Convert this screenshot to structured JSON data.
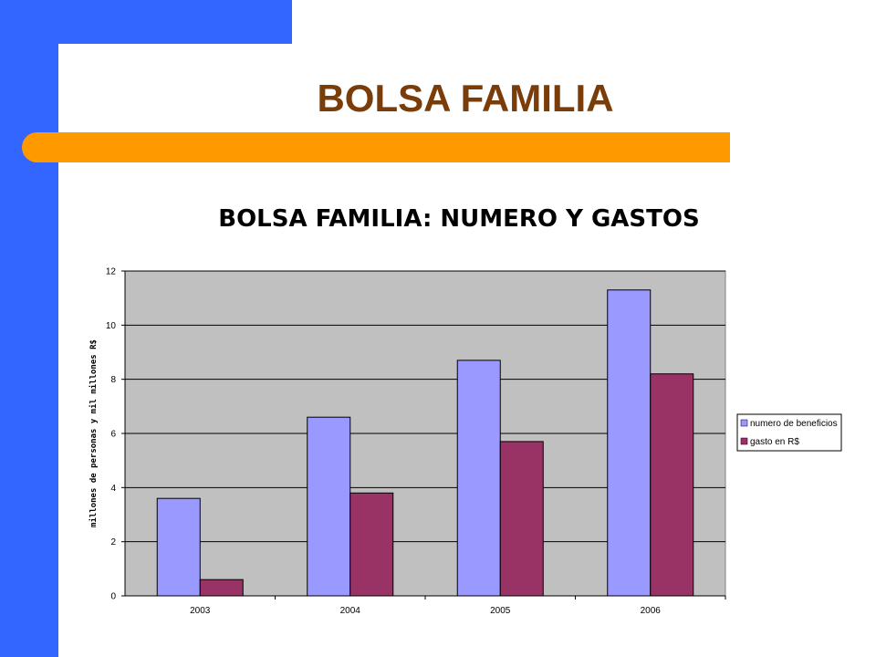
{
  "slide": {
    "title": "BOLSA FAMILIA"
  },
  "colors": {
    "accent_blue": "#3366ff",
    "accent_orange": "#ff9900",
    "title_brown": "#7a3d0a",
    "plot_bg": "#c0c0c0"
  },
  "chart_data": {
    "type": "bar",
    "title": "BOLSA FAMILIA: NUMERO Y GASTOS",
    "xlabel": "",
    "ylabel": "millones de personas y mil millones R$",
    "ylim": [
      0,
      12
    ],
    "yticks": [
      0,
      2,
      4,
      6,
      8,
      10,
      12
    ],
    "categories": [
      "2003",
      "2004",
      "2005",
      "2006"
    ],
    "series": [
      {
        "name": "numero de beneficios",
        "color": "#9999ff",
        "values": [
          3.6,
          6.6,
          8.7,
          11.3
        ]
      },
      {
        "name": "gasto en R$",
        "color": "#993366",
        "values": [
          0.6,
          3.8,
          5.7,
          8.2
        ]
      }
    ],
    "grid": true,
    "legend": "right"
  }
}
